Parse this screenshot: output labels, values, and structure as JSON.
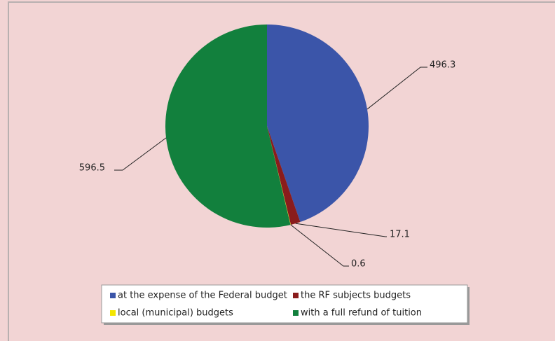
{
  "chart_data": {
    "type": "pie",
    "categories": [
      "at the expense of the  Federal budget",
      "the RF subjects budgets",
      "local (municipal) budgets",
      "with a full refund of tuition"
    ],
    "values": [
      496.3,
      17.1,
      0.6,
      596.5
    ],
    "colors": [
      "#3b55a9",
      "#8a1c1c",
      "#f4e600",
      "#12803d"
    ],
    "legend": "bottom"
  }
}
